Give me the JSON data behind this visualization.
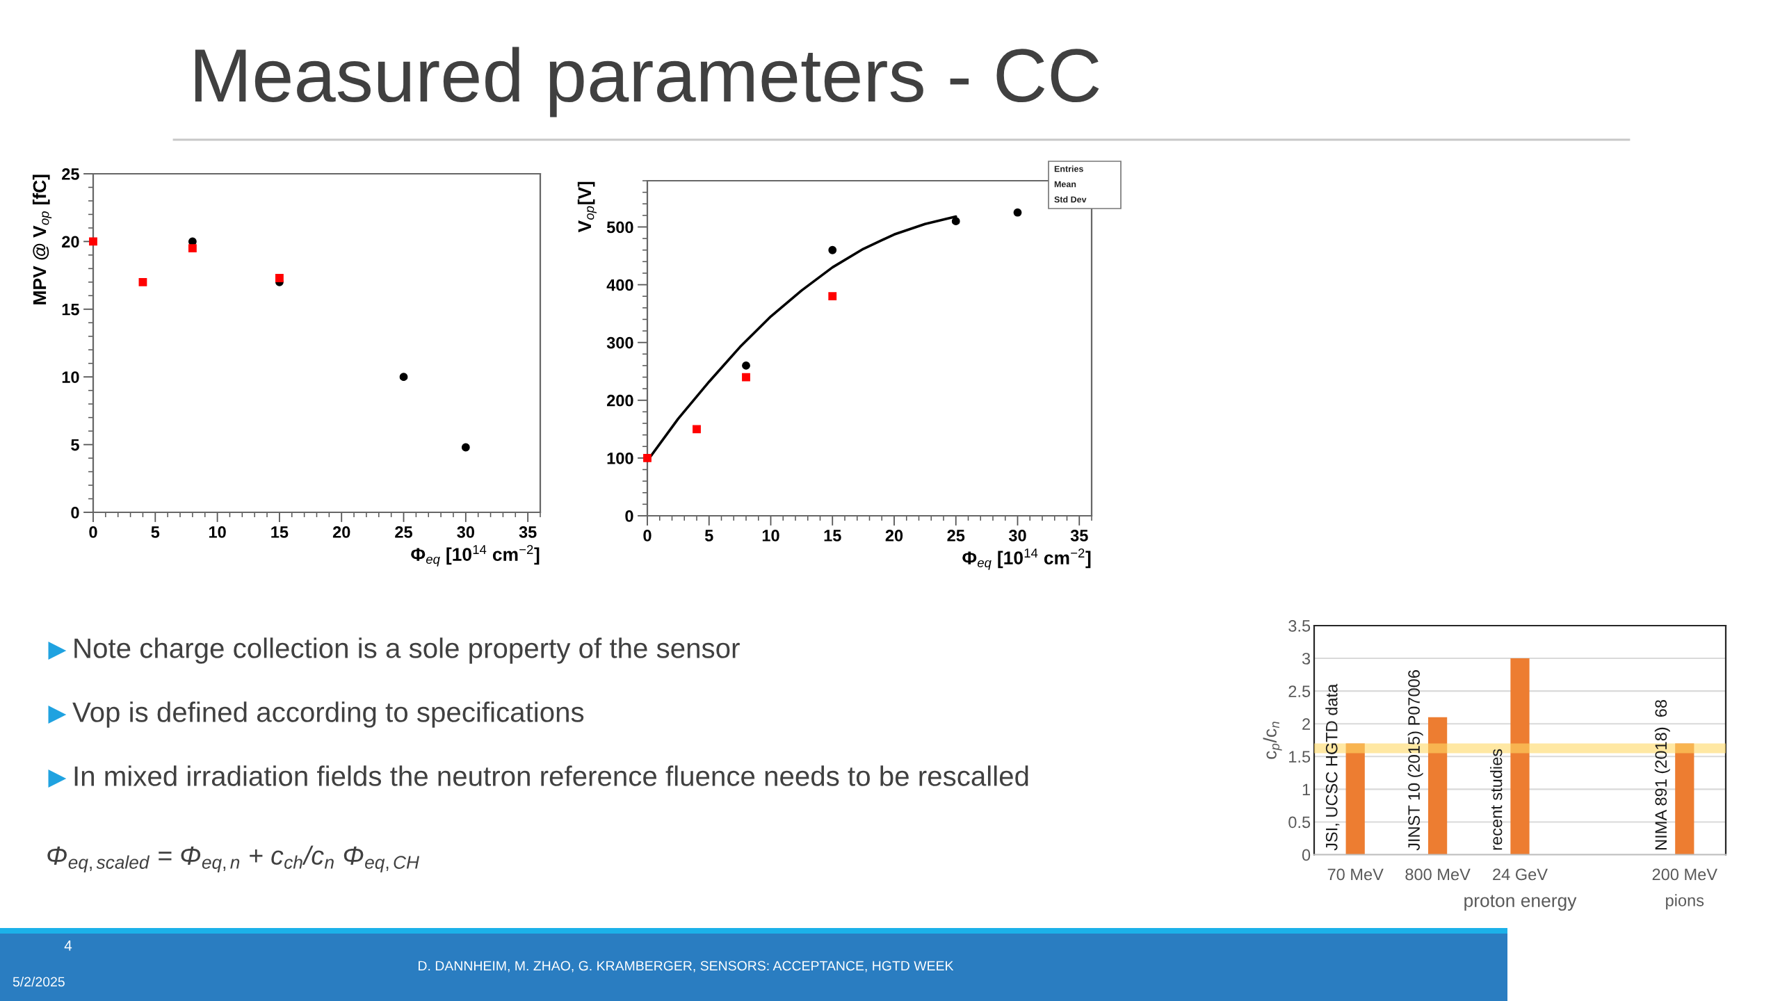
{
  "chart_data": [
    {
      "type": "other",
      "title": "Measured parameters - CC",
      "annotations": [
        "Note charge collection is a sole property of the sensor",
        "Vop is defined according to specifications",
        "In mixed irradiation fields the neutron reference fluence needs to be rescalled",
        "Φ$_{eq,scaled}$ = Φ$_{eq,n}$ + c$_{ch}$/c$_{n}$ Φ$_{eq,CH}$",
        "4",
        "5/2/2025",
        "D. DANNHEIM, M. ZHAO, G. KRAMBERGER, SENSORS: ACCEPTANCE, HGTD WEEK"
      ]
    },
    {
      "type": "scatter",
      "xlabel": "Φ$_{eq}$ [10$^{14}$ cm$^{−2}$]",
      "ylabel": "MPV @ V$_{op}$ [fC]",
      "xlim": [
        0,
        36
      ],
      "ylim": [
        0,
        25
      ],
      "xticks": [
        0,
        5,
        10,
        15,
        20,
        25,
        30,
        35
      ],
      "yticks": [
        0,
        5,
        10,
        15,
        20,
        25
      ],
      "series": [
        {
          "color": "#000000",
          "marker": "circle",
          "x": [
            8,
            15,
            25,
            30
          ],
          "values": [
            20,
            17,
            10,
            4.8
          ]
        },
        {
          "color": "#ff0000",
          "marker": "square",
          "x": [
            0,
            4,
            8,
            15
          ],
          "values": [
            20,
            17,
            19.5,
            17.3
          ]
        }
      ]
    },
    {
      "type": "scatter",
      "xlabel": "Φ$_{eq}$ [10$^{14}$ cm$^{−2}$]",
      "ylabel": "V$_{op}$[V]",
      "xlim": [
        0,
        36
      ],
      "ylim": [
        0,
        580
      ],
      "xticks": [
        0,
        5,
        10,
        15,
        20,
        25,
        30,
        35
      ],
      "yticks": [
        0,
        100,
        200,
        300,
        400,
        500
      ],
      "annotations": [
        "Entries",
        "Mean",
        "Std Dev"
      ],
      "series": [
        {
          "color": "#000000",
          "marker": "circle",
          "x": [
            8,
            15,
            25,
            30
          ],
          "values": [
            260,
            460,
            510,
            525
          ]
        },
        {
          "color": "#ff0000",
          "marker": "square",
          "x": [
            0,
            4,
            8,
            15
          ],
          "values": [
            100,
            150,
            240,
            380
          ]
        },
        {
          "type": "line",
          "color": "#000000",
          "line_style": "solid",
          "x": [
            0,
            2.5,
            5,
            7.5,
            10,
            12.5,
            15,
            17.5,
            20,
            22.5,
            25
          ],
          "values": [
            95,
            168,
            232,
            292,
            345,
            390,
            430,
            462,
            487,
            505,
            518
          ]
        }
      ]
    },
    {
      "type": "bar",
      "categories": [
        "70 MeV",
        "800 MeV",
        "24 GeV",
        null,
        "200 MeV\npions"
      ],
      "values": [
        1.7,
        2.1,
        3.0,
        null,
        1.7
      ],
      "color": "#ed7d31",
      "xlabel": "proton energy",
      "ylabel": "c$_{p}$/c$_{n}$",
      "ylim": [
        0,
        3.5
      ],
      "yticks": [
        0,
        0.5,
        1,
        1.5,
        2,
        2.5,
        3,
        3.5
      ],
      "grid": "y",
      "bands": [
        {
          "axis": "y",
          "from": 1.55,
          "to": 1.7,
          "color": "#ffd966"
        }
      ],
      "annotations": [
        {
          "text": "JSI, UCSC HGTD data",
          "x": "70 MeV",
          "y": 0
        },
        {
          "text": "JINST 10 (2015) P07006",
          "x": "800 MeV",
          "y": 0
        },
        {
          "text": "recent studies",
          "x": "24 GeV",
          "y": 0
        },
        {
          "text": "NIMA 891 (2018)  68",
          "x": "200 MeV\npions",
          "y": 0
        }
      ]
    }
  ]
}
